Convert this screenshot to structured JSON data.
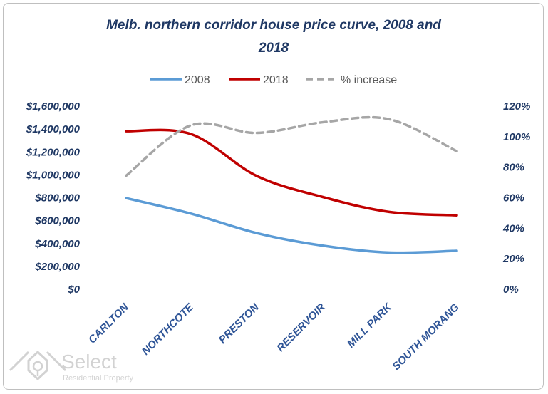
{
  "chart_data": {
    "type": "line",
    "title": "Melb. northern corridor house price curve, 2008 and 2018",
    "categories": [
      "CARLTON",
      "NORTHCOTE",
      "PRESTON",
      "RESERVOIR",
      "MILL PARK",
      "SOUTH MORANG"
    ],
    "series": [
      {
        "name": "2008",
        "axis": "left",
        "color": "#5b9bd5",
        "dashed": false,
        "values": [
          790000,
          655000,
          485000,
          375000,
          315000,
          330000
        ]
      },
      {
        "name": "2018",
        "axis": "left",
        "color": "#c00000",
        "dashed": false,
        "values": [
          1375000,
          1350000,
          985000,
          800000,
          670000,
          640000
        ]
      },
      {
        "name": "% increase",
        "axis": "right",
        "color": "#a6a6a6",
        "dashed": true,
        "values": [
          0.74,
          1.07,
          1.02,
          1.09,
          1.11,
          0.9
        ]
      }
    ],
    "y_left": {
      "ylim": [
        0,
        1600000
      ],
      "ticks": [
        0,
        200000,
        400000,
        600000,
        800000,
        1000000,
        1200000,
        1400000,
        1600000
      ],
      "tick_labels": [
        "$0",
        "$200,000",
        "$400,000",
        "$600,000",
        "$800,000",
        "$1,000,000",
        "$1,200,000",
        "$1,400,000",
        "$1,600,000"
      ]
    },
    "y_right": {
      "ylim": [
        0,
        1.2
      ],
      "ticks": [
        0,
        0.2,
        0.4,
        0.6,
        0.8,
        1.0,
        1.2
      ],
      "tick_labels": [
        "0%",
        "20%",
        "40%",
        "60%",
        "80%",
        "100%",
        "120%"
      ]
    },
    "legend_position": "top",
    "grid": false
  },
  "colors": {
    "title": "#1f3864",
    "axis_labels": "#1f3864",
    "category_labels": "#2f5597"
  },
  "watermark": {
    "brand": "Select",
    "tagline": "Residential Property",
    "icon": "house-shield-icon"
  }
}
